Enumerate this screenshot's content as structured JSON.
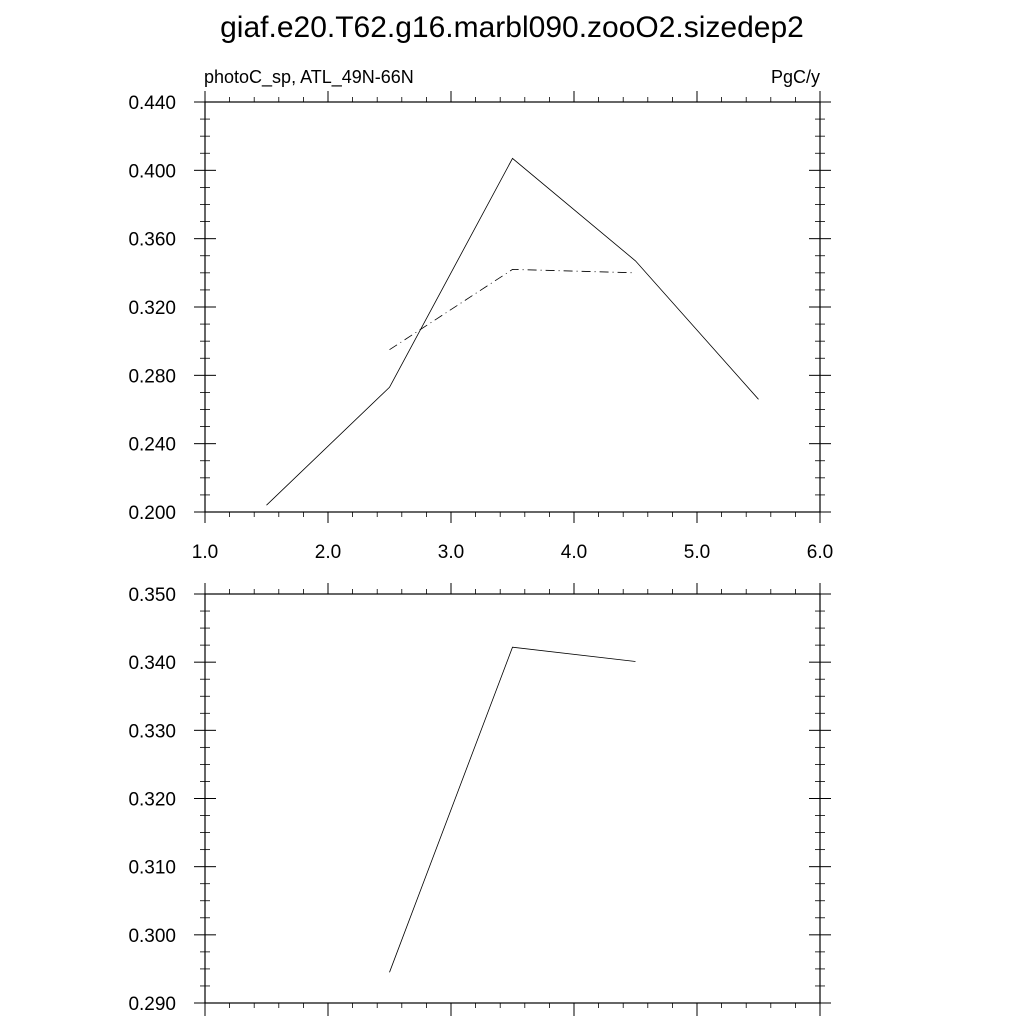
{
  "title": "giaf.e20.T62.g16.marbl090.zooO2.sizedep2",
  "chart_data": [
    {
      "type": "line",
      "left_label": "photoC_sp, ATL_49N-66N",
      "right_label": "PgC/y",
      "xlim": [
        1.0,
        6.0
      ],
      "ylim": [
        0.2,
        0.44
      ],
      "x_tick_labels": [
        "1.0",
        "2.0",
        "3.0",
        "4.0",
        "5.0",
        "6.0"
      ],
      "y_tick_labels": [
        "0.200",
        "0.240",
        "0.280",
        "0.320",
        "0.360",
        "0.400",
        "0.440"
      ],
      "grid": false,
      "series": [
        {
          "style": "solid",
          "x": [
            1.5,
            2.5,
            3.5,
            4.5,
            5.5
          ],
          "y": [
            0.204,
            0.273,
            0.407,
            0.347,
            0.266
          ]
        },
        {
          "style": "dashed",
          "x": [
            2.5,
            3.5,
            4.5
          ],
          "y": [
            0.295,
            0.342,
            0.34
          ]
        }
      ]
    },
    {
      "type": "line",
      "xlim": [
        1.0,
        6.0
      ],
      "ylim": [
        0.29,
        0.35
      ],
      "y_tick_labels": [
        "0.290",
        "0.300",
        "0.310",
        "0.320",
        "0.330",
        "0.340",
        "0.350"
      ],
      "grid": false,
      "series": [
        {
          "style": "solid",
          "x": [
            2.5,
            3.5,
            4.5
          ],
          "y": [
            0.2945,
            0.3422,
            0.3401
          ]
        }
      ]
    }
  ]
}
